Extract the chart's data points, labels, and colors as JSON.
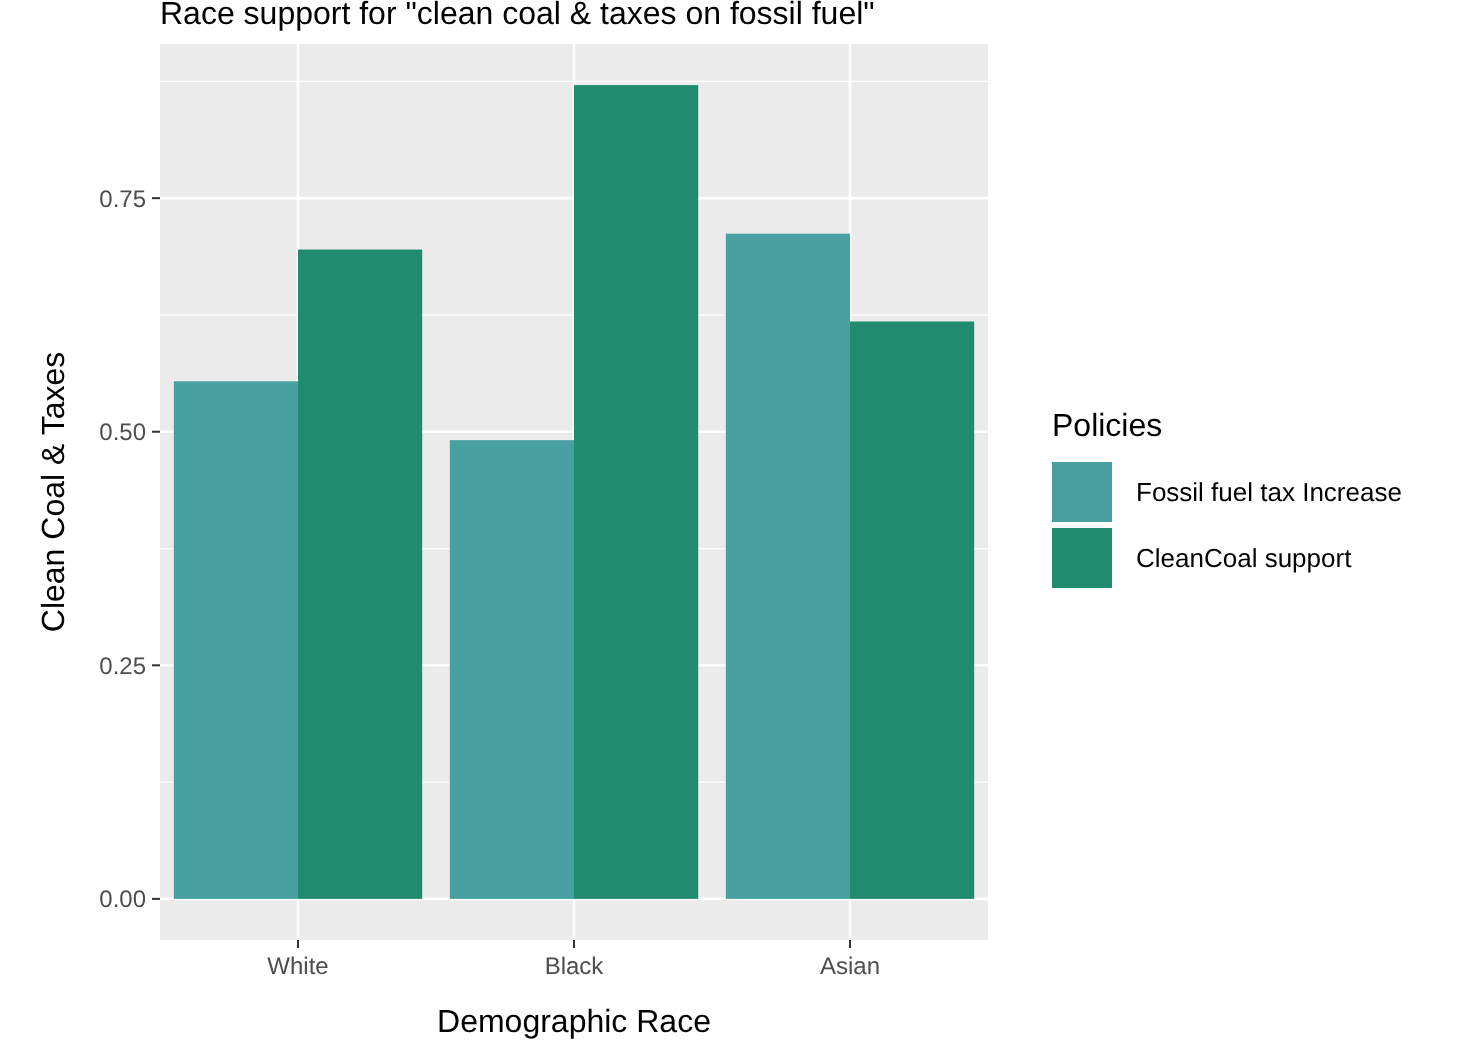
{
  "chart_data": {
    "type": "bar",
    "title": "Race support for \"clean coal & taxes on fossil fuel\"",
    "xlabel": "Demographic Race",
    "ylabel": "Clean Coal & Taxes",
    "legend_title": "Policies",
    "categories": [
      "White",
      "Black",
      "Asian"
    ],
    "series": [
      {
        "name": "Fossil fuel tax Increase",
        "color": "#48a0a0",
        "values": [
          0.554,
          0.491,
          0.712
        ]
      },
      {
        "name": "CleanCoal support",
        "color": "#218b6f",
        "values": [
          0.695,
          0.871,
          0.618
        ]
      }
    ],
    "ylim": [
      -0.044,
      0.915
    ],
    "yticks": [
      {
        "value": 0,
        "label": "0.00"
      },
      {
        "value": 0.25,
        "label": "0.25"
      },
      {
        "value": 0.5,
        "label": "0.50"
      },
      {
        "value": 0.75,
        "label": "0.75"
      }
    ],
    "grid": true,
    "legend": "right"
  }
}
